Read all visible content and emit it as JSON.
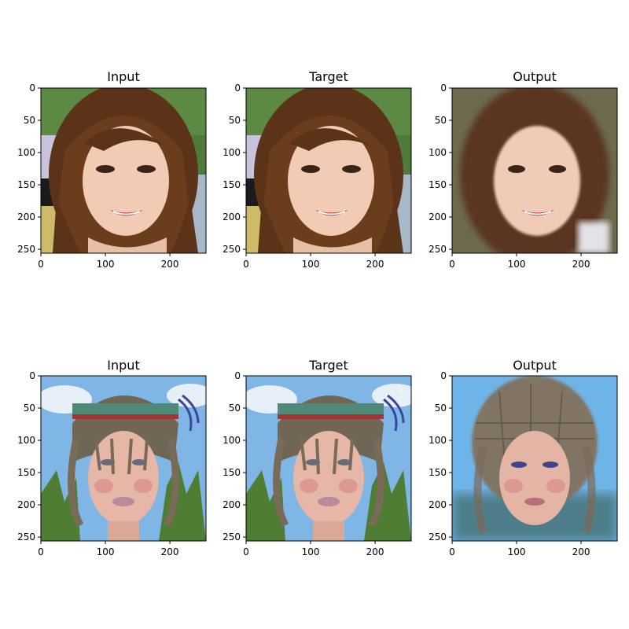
{
  "figure": {
    "panels": [
      {
        "title": "Input",
        "subject": "smiling young woman with long brown hair, green background"
      },
      {
        "title": "Target",
        "subject": "smiling young woman with long brown hair, green background"
      },
      {
        "title": "Output",
        "subject": "blurred reconstruction of smiling woman with brown hair"
      },
      {
        "title": "Input",
        "subject": "woman wearing beaded headdress with braids, sky and grass background"
      },
      {
        "title": "Target",
        "subject": "woman wearing beaded headdress with braids, sky and grass background"
      },
      {
        "title": "Output",
        "subject": "reconstruction of woman with mesh-like hair, blue background"
      }
    ],
    "axis": {
      "x_ticks": [
        "0",
        "100",
        "200"
      ],
      "y_ticks": [
        "0",
        "50",
        "100",
        "150",
        "200",
        "250"
      ],
      "range": [
        0,
        256
      ]
    },
    "colors": {
      "row1_background": "#4f7a3a",
      "row1_hair": "#5a3318",
      "row1_skin": "#f2cbb5",
      "row2_sky": "#7fb6e6",
      "row2_grass": "#4e7d33",
      "row2_headdress": "#6f6656",
      "row2_skin": "#e6b6a6",
      "output2_bg": "#6fb4e6"
    }
  }
}
